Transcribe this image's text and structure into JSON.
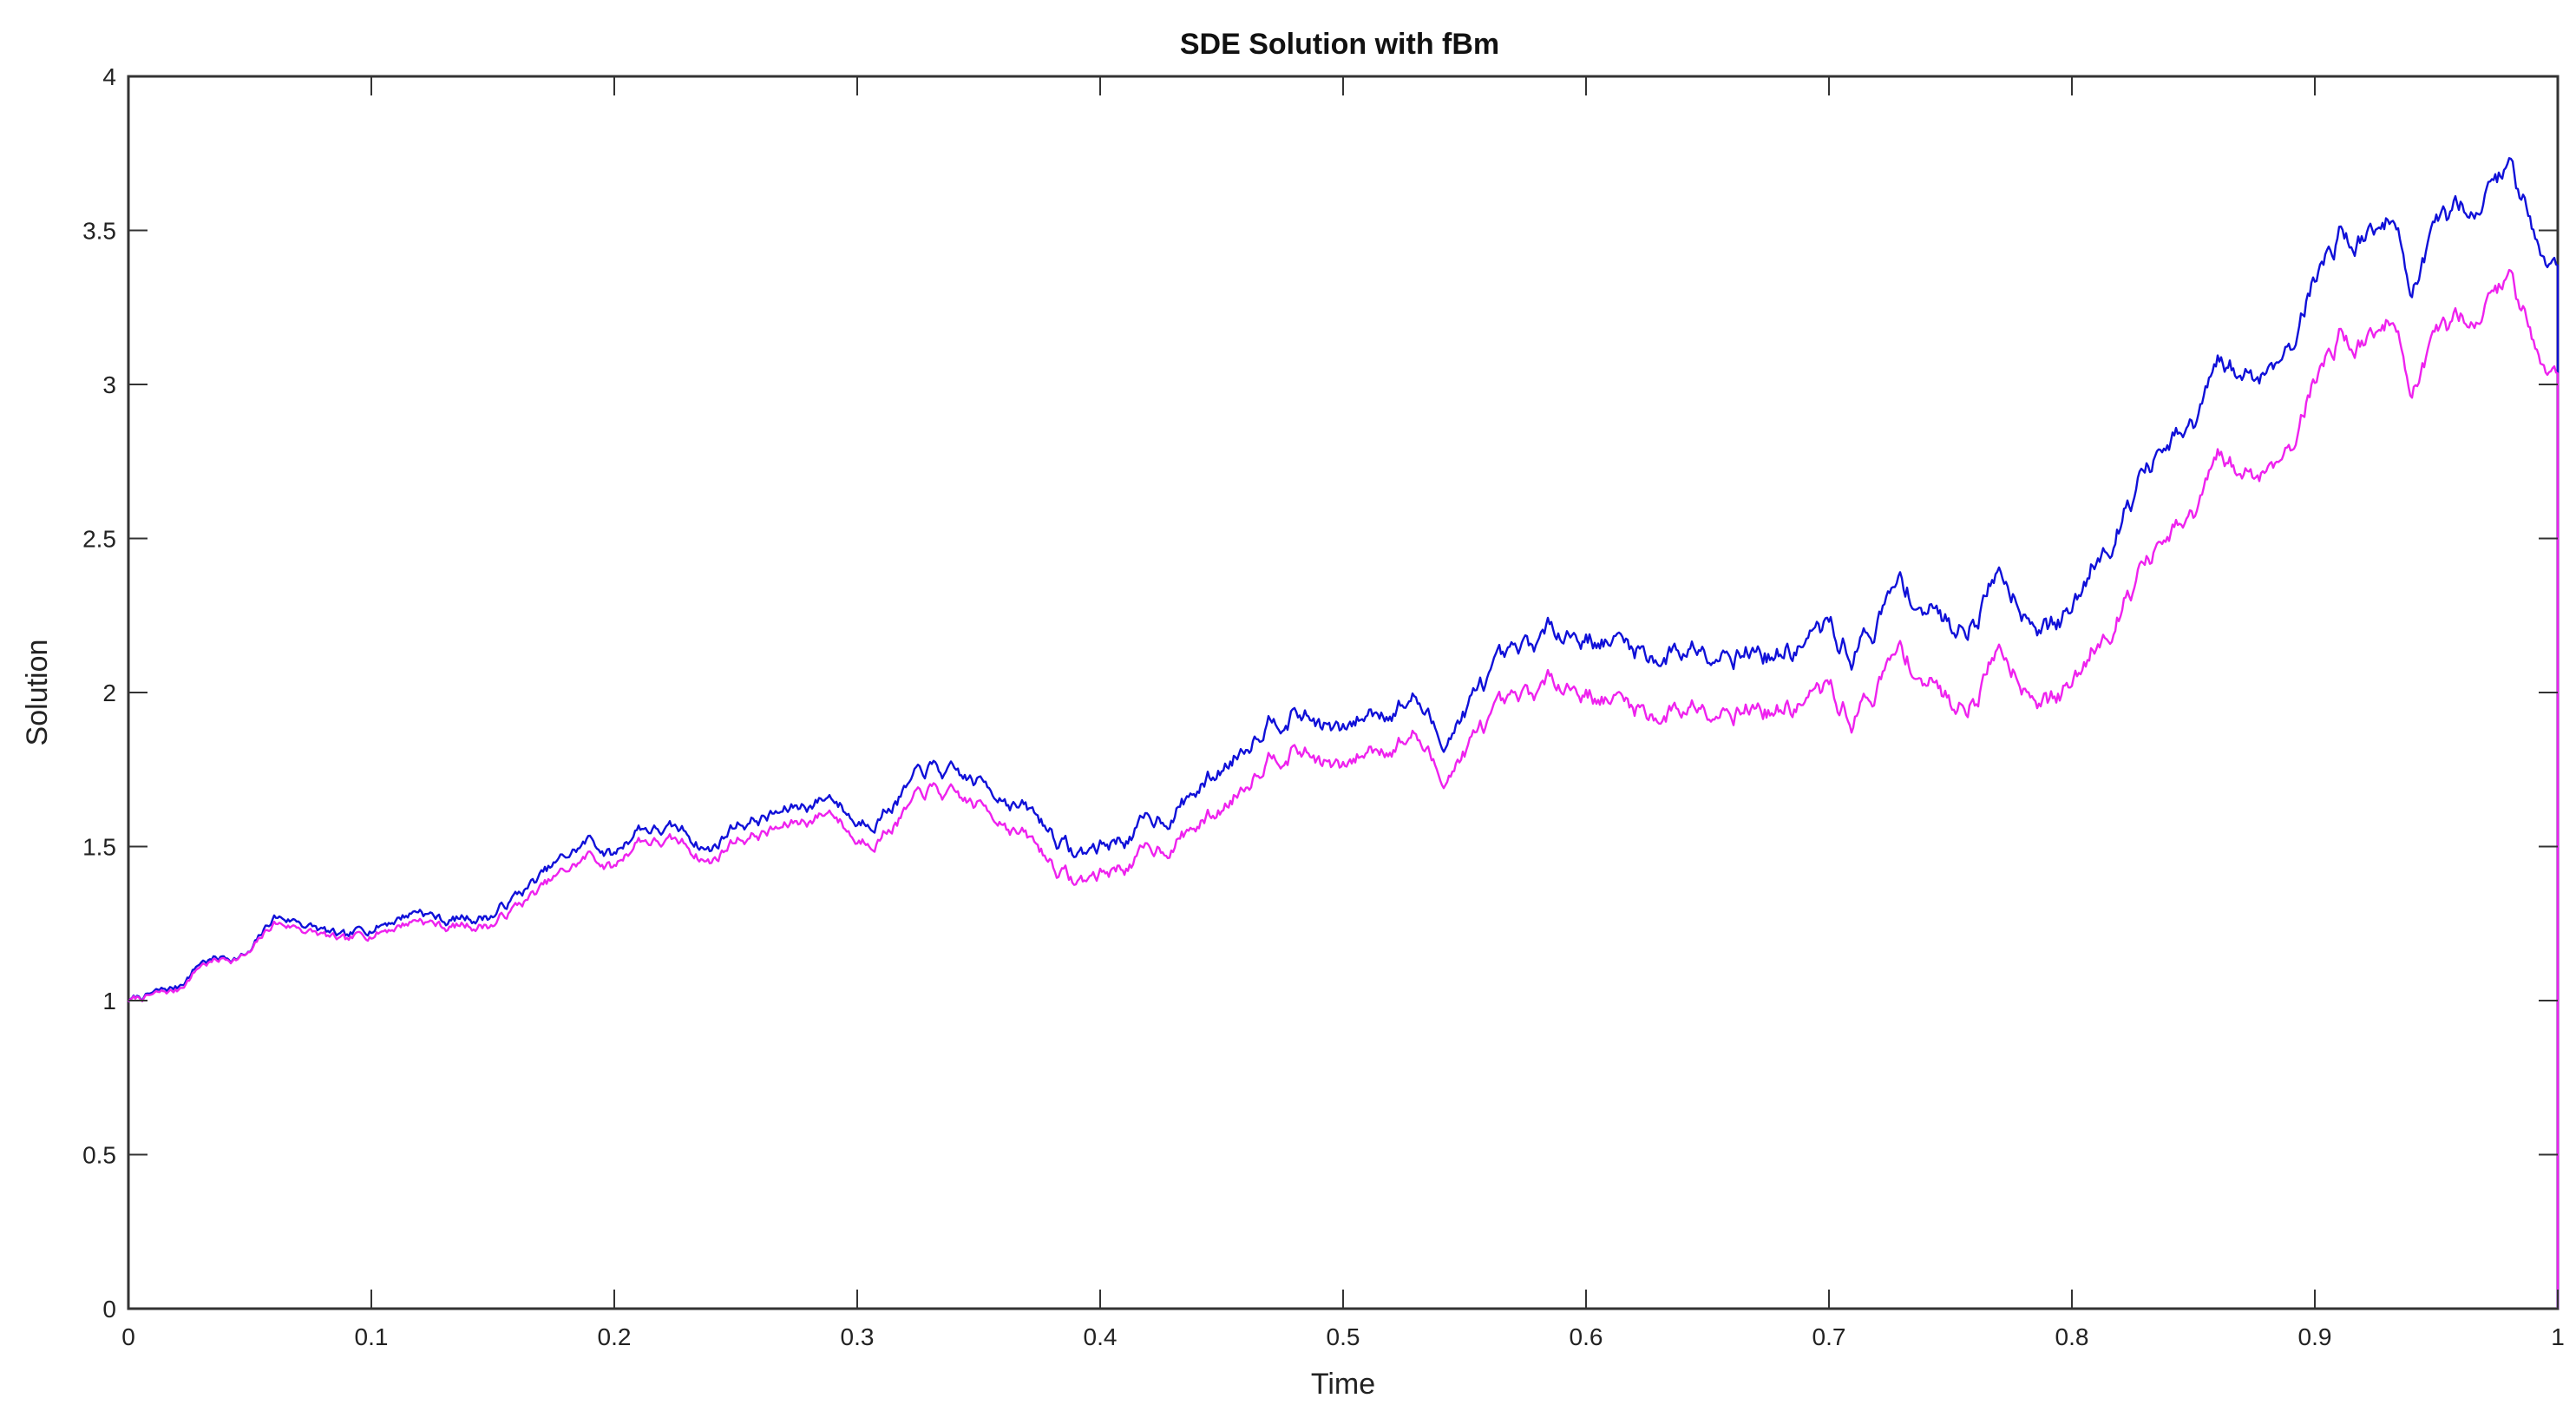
{
  "chart_data": {
    "type": "line",
    "title": "SDE Solution with fBm",
    "xlabel": "Time",
    "ylabel": "Solution",
    "xlim": [
      0,
      1
    ],
    "ylim": [
      0,
      4
    ],
    "xticks": [
      "0",
      "0.1",
      "0.2",
      "0.3",
      "0.4",
      "0.5",
      "0.6",
      "0.7",
      "0.8",
      "0.9",
      "1"
    ],
    "yticks": [
      "0",
      "0.5",
      "1",
      "1.5",
      "2",
      "2.5",
      "3",
      "3.5",
      "4"
    ],
    "grid": false,
    "series": [
      {
        "color": "#1010d8",
        "x": [
          0,
          0.02,
          0.03,
          0.05,
          0.06,
          0.07,
          0.09,
          0.1,
          0.12,
          0.13,
          0.15,
          0.17,
          0.19,
          0.2,
          0.21,
          0.23,
          0.24,
          0.25,
          0.27,
          0.29,
          0.3,
          0.31,
          0.33,
          0.34,
          0.36,
          0.38,
          0.39,
          0.41,
          0.43,
          0.45,
          0.47,
          0.48,
          0.5,
          0.51,
          0.53,
          0.54,
          0.56,
          0.57,
          0.59,
          0.61,
          0.63,
          0.65,
          0.66,
          0.68,
          0.7,
          0.71,
          0.72,
          0.73,
          0.75,
          0.76,
          0.77,
          0.79,
          0.8,
          0.81,
          0.83,
          0.85,
          0.86,
          0.87,
          0.88,
          0.89,
          0.9,
          0.91,
          0.92,
          0.93,
          0.94,
          0.95,
          0.96,
          0.97,
          0.98,
          0.99,
          1.0
        ],
        "y": [
          1.0,
          1.04,
          1.13,
          1.15,
          1.27,
          1.26,
          1.19,
          1.24,
          1.3,
          1.26,
          1.28,
          1.4,
          1.52,
          1.47,
          1.57,
          1.54,
          1.49,
          1.58,
          1.61,
          1.67,
          1.58,
          1.62,
          1.75,
          1.72,
          1.68,
          1.55,
          1.47,
          1.53,
          1.62,
          1.75,
          1.94,
          1.95,
          1.86,
          1.93,
          1.99,
          1.84,
          2.04,
          2.08,
          2.22,
          2.17,
          2.12,
          2.17,
          2.17,
          2.12,
          2.2,
          2.13,
          2.24,
          2.35,
          2.22,
          2.26,
          2.4,
          2.22,
          2.25,
          2.45,
          2.72,
          2.84,
          3.04,
          3.02,
          3.05,
          3.15,
          3.35,
          3.49,
          3.48,
          3.55,
          3.33,
          3.45,
          3.56,
          3.63,
          3.7,
          3.52,
          3.38
        ]
      },
      {
        "color": "#ee22ee",
        "x": [
          0,
          0.02,
          0.03,
          0.05,
          0.06,
          0.07,
          0.09,
          0.1,
          0.12,
          0.13,
          0.15,
          0.17,
          0.19,
          0.2,
          0.21,
          0.23,
          0.24,
          0.25,
          0.27,
          0.29,
          0.3,
          0.31,
          0.33,
          0.34,
          0.36,
          0.38,
          0.39,
          0.41,
          0.43,
          0.45,
          0.47,
          0.48,
          0.5,
          0.51,
          0.53,
          0.54,
          0.56,
          0.57,
          0.59,
          0.61,
          0.63,
          0.65,
          0.66,
          0.68,
          0.7,
          0.71,
          0.72,
          0.73,
          0.75,
          0.76,
          0.77,
          0.79,
          0.8,
          0.81,
          0.83,
          0.85,
          0.86,
          0.87,
          0.88,
          0.89,
          0.9,
          0.91,
          0.92,
          0.93,
          0.94,
          0.95,
          0.96,
          0.97,
          0.98,
          0.99,
          1.0
        ],
        "y": [
          1.0,
          1.03,
          1.12,
          1.15,
          1.25,
          1.24,
          1.18,
          1.22,
          1.27,
          1.24,
          1.25,
          1.36,
          1.47,
          1.43,
          1.53,
          1.5,
          1.45,
          1.53,
          1.56,
          1.62,
          1.52,
          1.55,
          1.68,
          1.65,
          1.6,
          1.45,
          1.38,
          1.44,
          1.52,
          1.62,
          1.82,
          1.83,
          1.74,
          1.81,
          1.87,
          1.72,
          1.9,
          1.93,
          2.05,
          1.98,
          1.93,
          1.98,
          1.98,
          1.94,
          2.0,
          1.92,
          2.03,
          2.13,
          1.97,
          2.0,
          2.15,
          1.98,
          2.01,
          2.17,
          2.42,
          2.55,
          2.74,
          2.7,
          2.73,
          2.82,
          3.02,
          3.16,
          3.14,
          3.22,
          3.0,
          3.1,
          3.2,
          3.27,
          3.34,
          3.16,
          3.03
        ]
      }
    ]
  }
}
